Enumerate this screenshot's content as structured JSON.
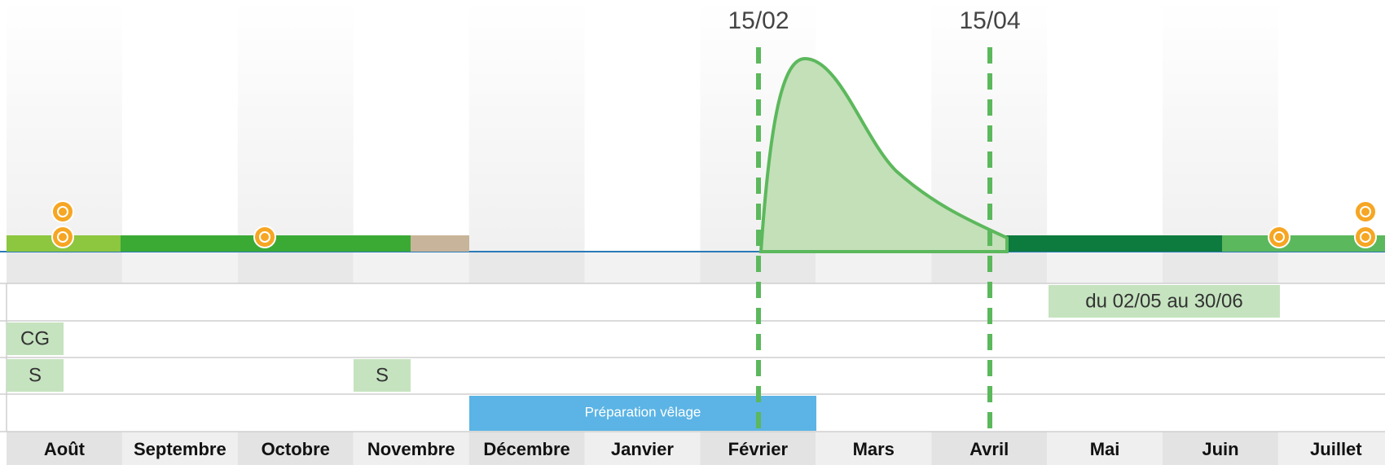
{
  "markers": [
    {
      "label": "15/02"
    },
    {
      "label": "15/04"
    }
  ],
  "rows": [
    {
      "boxes": [
        {
          "label": "du 02/05 au 30/06"
        }
      ]
    },
    {
      "boxes": [
        {
          "label": "CG"
        }
      ]
    },
    {
      "boxes": [
        {
          "label": "S"
        },
        {
          "label": "S"
        }
      ]
    },
    {
      "boxes": [
        {
          "label": "Préparation vêlage"
        }
      ]
    }
  ],
  "months": [
    "Août",
    "Septembre",
    "Octobre",
    "Novembre",
    "Décembre",
    "Janvier",
    "Février",
    "Mars",
    "Avril",
    "Mai",
    "Juin",
    "Juillet"
  ]
}
